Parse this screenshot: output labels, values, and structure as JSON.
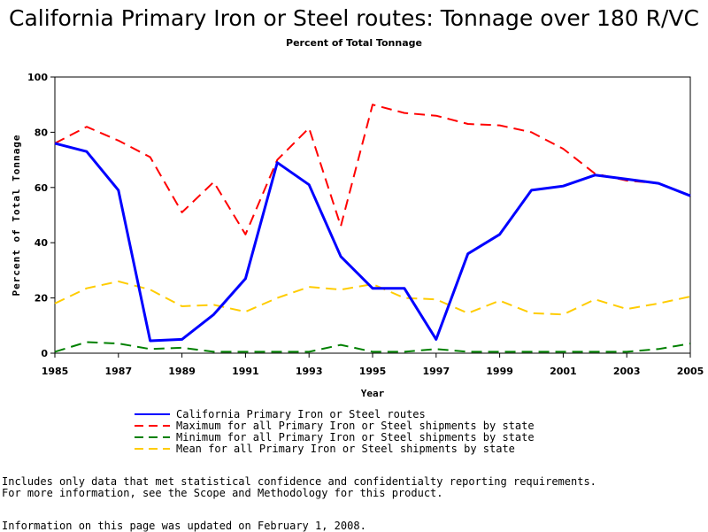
{
  "chart_data": {
    "type": "line",
    "title": "California Primary Iron or Steel routes: Tonnage over 180 R/VC",
    "subtitle": "Percent of Total Tonnage",
    "xlabel": "Year",
    "ylabel": "Percent of Total Tonnage",
    "xlim": [
      1985,
      2005
    ],
    "ylim": [
      0,
      100
    ],
    "x_ticks": [
      1985,
      1987,
      1989,
      1991,
      1993,
      1995,
      1997,
      1999,
      2001,
      2003,
      2005
    ],
    "y_ticks": [
      0,
      20,
      40,
      60,
      80,
      100
    ],
    "grid": false,
    "legend_position": "bottom",
    "x": [
      1985,
      1986,
      1987,
      1988,
      1989,
      1990,
      1991,
      1992,
      1993,
      1994,
      1995,
      1996,
      1997,
      1998,
      1999,
      2000,
      2001,
      2002,
      2003,
      2004,
      2005
    ],
    "series": [
      {
        "name": "California Primary Iron or Steel routes",
        "color": "#0000ff",
        "style": "solid",
        "values": [
          76,
          73,
          59,
          4.5,
          5,
          14,
          27,
          69,
          61,
          35,
          23.5,
          23.5,
          5,
          36,
          43,
          59,
          60.5,
          64.5,
          63,
          61.5,
          57
        ]
      },
      {
        "name": "Maximum for all Primary Iron or Steel shipments by state",
        "color": "#ff0000",
        "style": "dashed",
        "values": [
          76,
          82,
          77,
          71,
          51,
          62,
          43,
          70,
          81.5,
          46,
          90,
          87,
          86,
          83,
          82.5,
          80,
          74,
          65,
          62.5,
          61.5,
          57
        ]
      },
      {
        "name": "Minimum for all Primary Iron or Steel shipments by state",
        "color": "#008000",
        "style": "dashed",
        "values": [
          0.5,
          4,
          3.5,
          1.5,
          2,
          0.5,
          0.5,
          0.5,
          0.5,
          3,
          0.5,
          0.5,
          1.5,
          0.5,
          0.5,
          0.5,
          0.5,
          0.5,
          0.5,
          1.5,
          3.5
        ]
      },
      {
        "name": "Mean for all Primary Iron or Steel shipments by state",
        "color": "#ffcc00",
        "style": "dashed",
        "values": [
          18,
          23.5,
          26,
          23,
          17,
          17.5,
          15,
          20,
          24,
          23,
          25,
          20,
          19.5,
          14.5,
          19,
          14.5,
          14,
          19.5,
          16,
          18,
          20.5
        ]
      }
    ]
  },
  "notes": {
    "line1": "Includes only data that met statistical confidence and confidentialty reporting requirements.",
    "line2": "For more information, see the Scope and Methodology for this product.",
    "line3": "Information on this page was updated on February 1, 2008."
  }
}
